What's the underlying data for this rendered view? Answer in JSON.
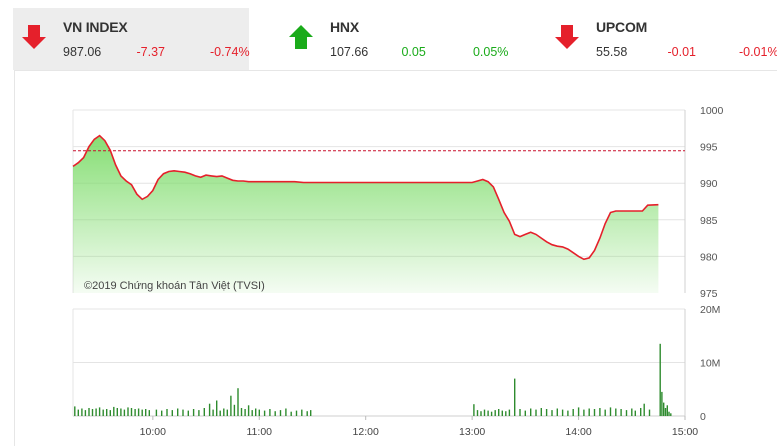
{
  "tickers": [
    {
      "name": "VN INDEX",
      "value": "987.06",
      "change": "-7.37",
      "pct": "-0.74%",
      "direction": "down",
      "color": "#e5202b",
      "active": true
    },
    {
      "name": "HNX",
      "value": "107.66",
      "change": "0.05",
      "pct": "0.05%",
      "direction": "up",
      "color": "#1aab1a",
      "active": false
    },
    {
      "name": "UPCOM",
      "value": "55.58",
      "change": "-0.01",
      "pct": "-0.01%",
      "direction": "down",
      "color": "#e5202b",
      "active": false
    }
  ],
  "chart_data": [
    {
      "type": "area",
      "series": [
        {
          "values": [
            [
              "09:15",
              992.3
            ],
            [
              "09:18",
              992.8
            ],
            [
              "09:21",
              993.5
            ],
            [
              "09:24",
              995.0
            ],
            [
              "09:27",
              996.0
            ],
            [
              "09:30",
              996.5
            ],
            [
              "09:33",
              995.8
            ],
            [
              "09:36",
              994.5
            ],
            [
              "09:39",
              992.5
            ],
            [
              "09:42",
              991.0
            ],
            [
              "09:45",
              990.3
            ],
            [
              "09:48",
              989.8
            ],
            [
              "09:51",
              988.5
            ],
            [
              "09:54",
              987.8
            ],
            [
              "09:57",
              988.2
            ],
            [
              "10:00",
              989.0
            ],
            [
              "10:03",
              990.5
            ],
            [
              "10:06",
              991.3
            ],
            [
              "10:09",
              991.6
            ],
            [
              "10:12",
              991.7
            ],
            [
              "10:15",
              991.6
            ],
            [
              "10:18",
              991.5
            ],
            [
              "10:21",
              991.3
            ],
            [
              "10:24",
              991.0
            ],
            [
              "10:27",
              990.8
            ],
            [
              "10:30",
              991.1
            ],
            [
              "10:33",
              991.0
            ],
            [
              "10:36",
              990.9
            ],
            [
              "10:39",
              991.0
            ],
            [
              "10:42",
              990.7
            ],
            [
              "10:45",
              990.4
            ],
            [
              "10:48",
              990.3
            ],
            [
              "10:51",
              990.3
            ],
            [
              "10:54",
              990.2
            ],
            [
              "10:57",
              990.2
            ],
            [
              "11:00",
              990.2
            ],
            [
              "11:05",
              990.2
            ],
            [
              "11:10",
              990.2
            ],
            [
              "11:15",
              990.2
            ],
            [
              "11:20",
              990.2
            ],
            [
              "11:25",
              990.1
            ],
            [
              "11:30",
              990.1
            ],
            [
              "13:00",
              990.1
            ],
            [
              "13:03",
              990.3
            ],
            [
              "13:06",
              990.5
            ],
            [
              "13:09",
              990.2
            ],
            [
              "13:12",
              989.5
            ],
            [
              "13:15",
              987.8
            ],
            [
              "13:18",
              986.0
            ],
            [
              "13:21",
              984.8
            ],
            [
              "13:24",
              983.0
            ],
            [
              "13:27",
              982.7
            ],
            [
              "13:30",
              983.0
            ],
            [
              "13:33",
              983.3
            ],
            [
              "13:36",
              983.0
            ],
            [
              "13:39",
              982.5
            ],
            [
              "13:42",
              982.0
            ],
            [
              "13:45",
              981.6
            ],
            [
              "13:48",
              981.4
            ],
            [
              "13:51",
              981.3
            ],
            [
              "13:54",
              981.0
            ],
            [
              "13:57",
              980.5
            ],
            [
              "14:00",
              980.0
            ],
            [
              "14:03",
              979.6
            ],
            [
              "14:06",
              979.8
            ],
            [
              "14:09",
              980.8
            ],
            [
              "14:12",
              982.5
            ],
            [
              "14:15",
              984.5
            ],
            [
              "14:18",
              986.0
            ],
            [
              "14:21",
              986.2
            ],
            [
              "14:24",
              986.2
            ],
            [
              "14:27",
              986.2
            ],
            [
              "14:30",
              986.2
            ],
            [
              "14:36",
              986.2
            ],
            [
              "14:39",
              987.0
            ],
            [
              "14:45",
              987.06
            ]
          ]
        }
      ],
      "reference_value": 994.43,
      "ylim": [
        975,
        1000
      ],
      "ytick_labels": [
        "1000",
        "995",
        "990",
        "985",
        "980",
        "975"
      ],
      "annotation": "©2019 Chứng khoán Tân Việt (TVSI)",
      "line_color": "#e5202b",
      "fill_color": "#7fdc6c",
      "reference_color": "#c8102e"
    },
    {
      "type": "bar",
      "ylim": [
        0,
        20
      ],
      "ytick_labels": [
        "20M",
        "10M",
        "0"
      ],
      "x_ticks": [
        "10:00",
        "11:00",
        "12:00",
        "13:00",
        "14:00",
        "15:00"
      ],
      "x_range": [
        "09:15",
        "15:00"
      ],
      "bar_color": "#2e8b2e",
      "values": [
        [
          "09:16",
          1.8
        ],
        [
          "09:18",
          1.2
        ],
        [
          "09:20",
          1.4
        ],
        [
          "09:22",
          1.1
        ],
        [
          "09:24",
          1.5
        ],
        [
          "09:26",
          1.3
        ],
        [
          "09:28",
          1.4
        ],
        [
          "09:30",
          1.6
        ],
        [
          "09:32",
          1.2
        ],
        [
          "09:34",
          1.3
        ],
        [
          "09:36",
          1.1
        ],
        [
          "09:38",
          1.7
        ],
        [
          "09:40",
          1.5
        ],
        [
          "09:42",
          1.4
        ],
        [
          "09:44",
          1.2
        ],
        [
          "09:46",
          1.6
        ],
        [
          "09:48",
          1.5
        ],
        [
          "09:50",
          1.3
        ],
        [
          "09:52",
          1.4
        ],
        [
          "09:54",
          1.2
        ],
        [
          "09:56",
          1.3
        ],
        [
          "09:58",
          1.1
        ],
        [
          "10:02",
          1.2
        ],
        [
          "10:05",
          1.0
        ],
        [
          "10:08",
          1.3
        ],
        [
          "10:11",
          1.1
        ],
        [
          "10:14",
          1.4
        ],
        [
          "10:17",
          1.2
        ],
        [
          "10:20",
          1.0
        ],
        [
          "10:23",
          1.3
        ],
        [
          "10:26",
          1.1
        ],
        [
          "10:29",
          1.5
        ],
        [
          "10:32",
          2.3
        ],
        [
          "10:34",
          1.2
        ],
        [
          "10:36",
          2.9
        ],
        [
          "10:38",
          1.0
        ],
        [
          "10:40",
          1.4
        ],
        [
          "10:42",
          1.2
        ],
        [
          "10:44",
          3.8
        ],
        [
          "10:46",
          2.1
        ],
        [
          "10:48",
          5.2
        ],
        [
          "10:50",
          1.5
        ],
        [
          "10:52",
          1.3
        ],
        [
          "10:54",
          2.0
        ],
        [
          "10:56",
          1.1
        ],
        [
          "10:58",
          1.4
        ],
        [
          "11:00",
          1.2
        ],
        [
          "11:03",
          1.0
        ],
        [
          "11:06",
          1.3
        ],
        [
          "11:09",
          0.9
        ],
        [
          "11:12",
          1.1
        ],
        [
          "11:15",
          1.4
        ],
        [
          "11:18",
          0.8
        ],
        [
          "11:21",
          1.0
        ],
        [
          "11:24",
          1.2
        ],
        [
          "11:27",
          0.9
        ],
        [
          "11:29",
          1.1
        ],
        [
          "13:01",
          2.2
        ],
        [
          "13:03",
          1.1
        ],
        [
          "13:05",
          0.9
        ],
        [
          "13:07",
          1.2
        ],
        [
          "13:09",
          1.0
        ],
        [
          "13:11",
          0.8
        ],
        [
          "13:13",
          1.1
        ],
        [
          "13:15",
          1.3
        ],
        [
          "13:17",
          1.0
        ],
        [
          "13:19",
          0.9
        ],
        [
          "13:21",
          1.2
        ],
        [
          "13:24",
          7.0
        ],
        [
          "13:27",
          1.3
        ],
        [
          "13:30",
          1.0
        ],
        [
          "13:33",
          1.4
        ],
        [
          "13:36",
          1.2
        ],
        [
          "13:39",
          1.5
        ],
        [
          "13:42",
          1.3
        ],
        [
          "13:45",
          1.1
        ],
        [
          "13:48",
          1.4
        ],
        [
          "13:51",
          1.2
        ],
        [
          "13:54",
          1.0
        ],
        [
          "13:57",
          1.3
        ],
        [
          "14:00",
          1.6
        ],
        [
          "14:03",
          1.2
        ],
        [
          "14:06",
          1.4
        ],
        [
          "14:09",
          1.3
        ],
        [
          "14:12",
          1.5
        ],
        [
          "14:15",
          1.2
        ],
        [
          "14:18",
          1.6
        ],
        [
          "14:21",
          1.4
        ],
        [
          "14:24",
          1.3
        ],
        [
          "14:27",
          1.1
        ],
        [
          "14:30",
          1.4
        ],
        [
          "14:32",
          1.0
        ],
        [
          "14:35",
          1.5
        ],
        [
          "14:37",
          2.3
        ],
        [
          "14:40",
          1.2
        ],
        [
          "14:46",
          13.5
        ],
        [
          "14:47",
          4.5
        ],
        [
          "14:48",
          2.5
        ],
        [
          "14:49",
          1.5
        ],
        [
          "14:50",
          2.0
        ],
        [
          "14:51",
          0.8
        ],
        [
          "14:52",
          0.5
        ]
      ]
    }
  ]
}
